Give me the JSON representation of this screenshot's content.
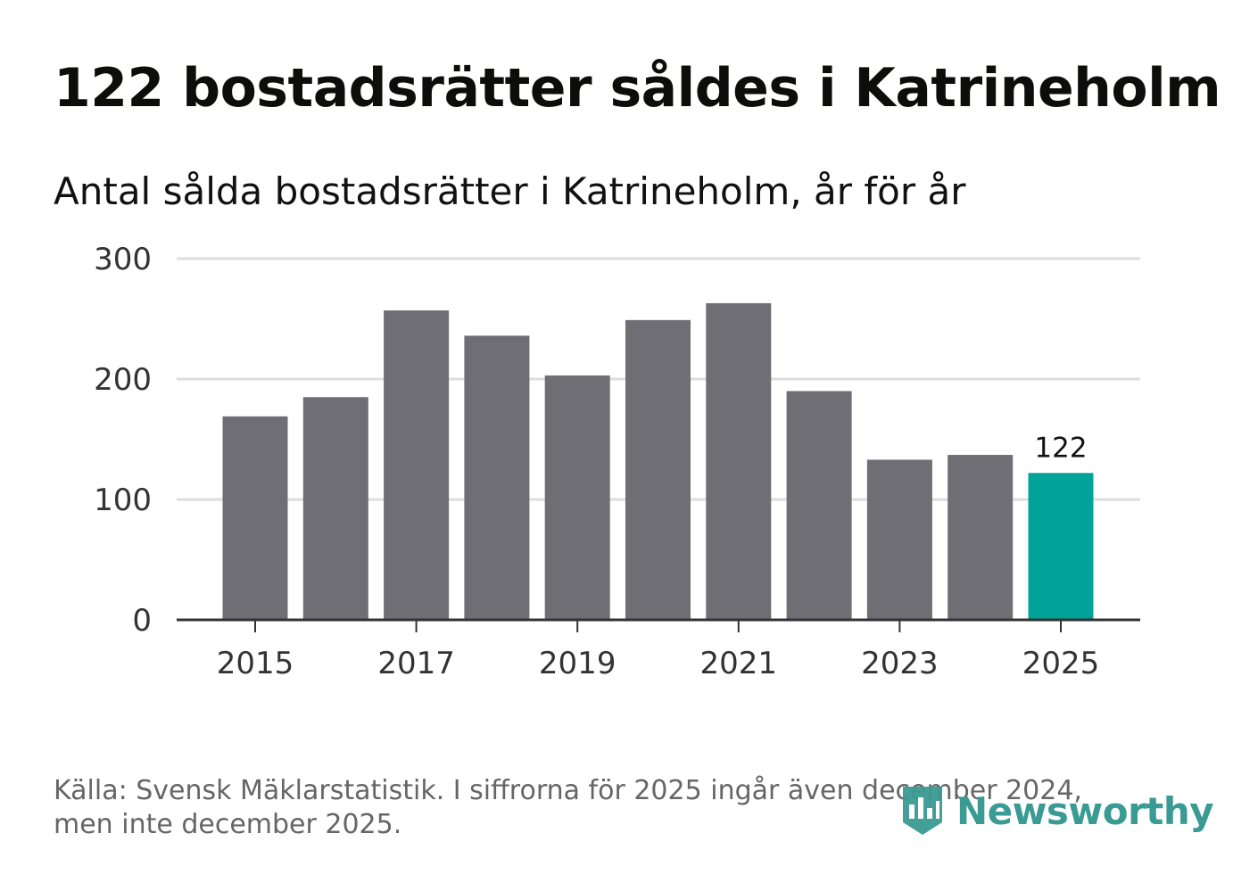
{
  "title": "122 bostadsrätter såldes i Katrineholm",
  "subtitle": "Antal sålda bostadsrätter i Katrineholm, år för år",
  "source_line1": "Källa: Svensk Mäklarstatistik. I siffrorna för 2025 ingår även december 2024,",
  "source_line2": "men inte december 2025.",
  "logo_text": "Newsworthy",
  "colors": {
    "bar": "#6f6e74",
    "highlight": "#00a398",
    "grid": "#dddddd",
    "axis": "#333333",
    "logo": "#3a9a94"
  },
  "chart_data": {
    "type": "bar",
    "title": "Antal sålda bostadsrätter i Katrineholm, år för år",
    "xlabel": "",
    "ylabel": "",
    "categories": [
      2015,
      2016,
      2017,
      2018,
      2019,
      2020,
      2021,
      2022,
      2023,
      2024,
      2025
    ],
    "values": [
      169,
      185,
      257,
      236,
      203,
      249,
      263,
      190,
      133,
      137,
      122
    ],
    "highlight_index": 10,
    "data_labels": [
      {
        "index": 10,
        "text": "122"
      }
    ],
    "ylim": [
      0,
      300
    ],
    "yticks": [
      0,
      100,
      200,
      300
    ],
    "xticks": [
      2015,
      2017,
      2019,
      2021,
      2023,
      2025
    ],
    "grid": true
  }
}
